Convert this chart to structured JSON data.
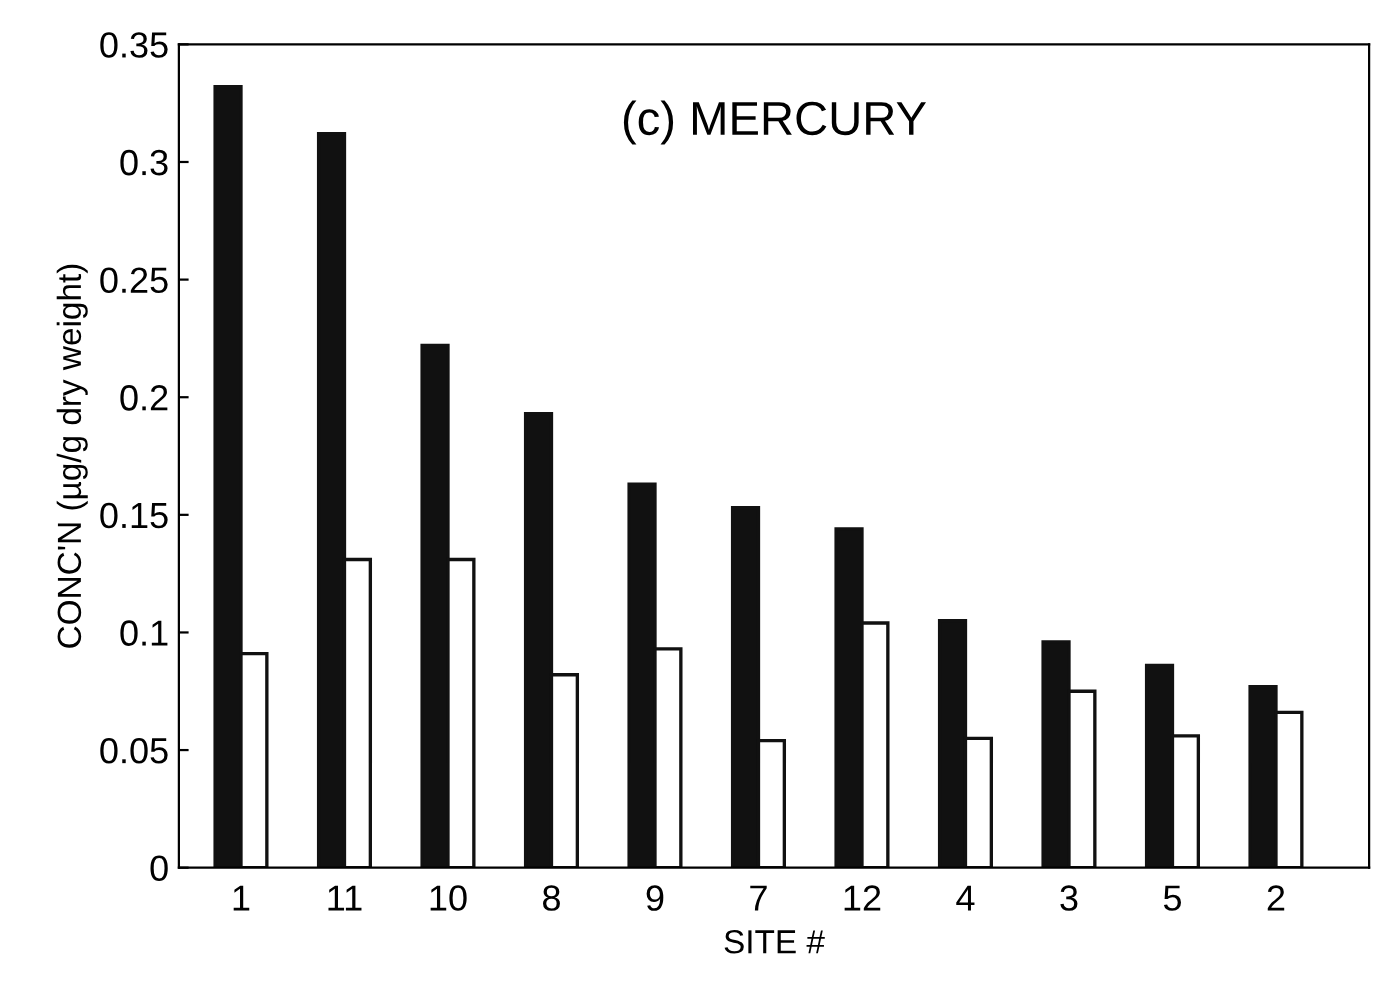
{
  "chart_data": {
    "type": "bar",
    "title": "(c) MERCURY",
    "xlabel": "SITE #",
    "ylabel": "CONC'N (µg/g dry weight)",
    "categories": [
      "1",
      "11",
      "10",
      "8",
      "9",
      "7",
      "12",
      "4",
      "3",
      "5",
      "2"
    ],
    "series": [
      {
        "color": "#111111",
        "values": [
          0.332,
          0.312,
          0.222,
          0.193,
          0.163,
          0.153,
          0.144,
          0.105,
          0.096,
          0.086,
          0.077
        ]
      },
      {
        "color": "#ffffff",
        "values": [
          0.091,
          0.131,
          0.131,
          0.082,
          0.093,
          0.054,
          0.104,
          0.055,
          0.075,
          0.056,
          0.066
        ]
      }
    ],
    "ylim": [
      0,
      0.35
    ],
    "yticks": [
      {
        "value": 0,
        "label": "0"
      },
      0.05,
      0.1,
      0.15,
      0.2,
      0.25,
      0.3,
      0.35
    ],
    "grid": false,
    "legend": false
  }
}
